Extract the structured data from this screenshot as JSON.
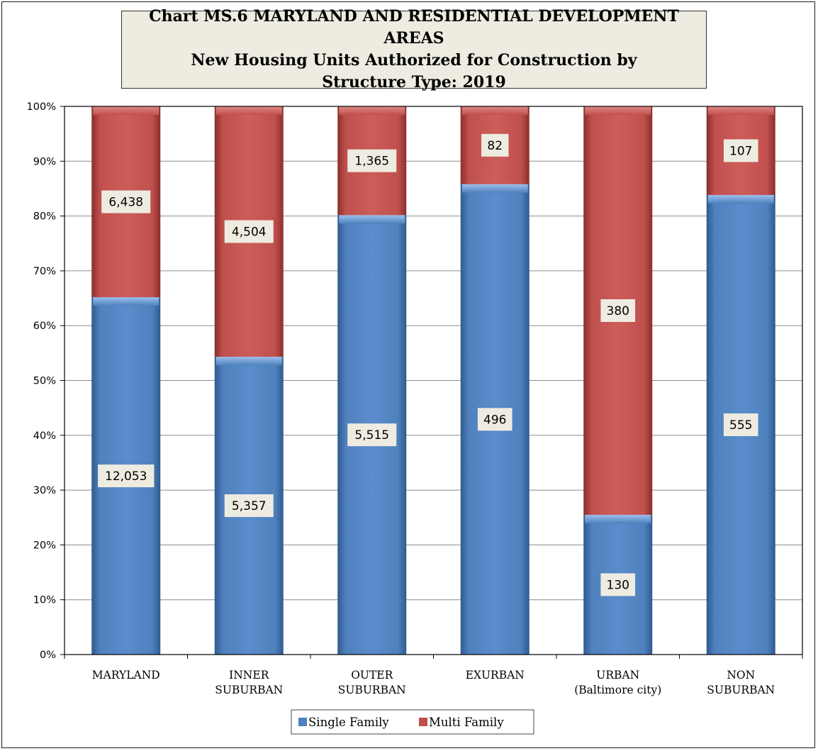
{
  "title": {
    "line1": "Chart MS.6  MARYLAND AND RESIDENTIAL DEVELOPMENT  AREAS",
    "line2": "New Housing Units Authorized for Construction by",
    "line3": "Structure Type:  2019"
  },
  "chart_data": {
    "type": "bar",
    "stacked": "percent",
    "categories": [
      [
        "MARYLAND"
      ],
      [
        "INNER",
        "SUBURBAN"
      ],
      [
        "OUTER",
        "SUBURBAN"
      ],
      [
        "EXURBAN"
      ],
      [
        "URBAN",
        "(Baltimore city)"
      ],
      [
        "NON",
        "SUBURBAN"
      ]
    ],
    "series": [
      {
        "name": "Single Family",
        "values": [
          12053,
          5357,
          5515,
          496,
          130,
          555
        ],
        "labels": [
          "12,053",
          "5,357",
          "5,515",
          "496",
          "130",
          "555"
        ],
        "color": "#4f81bd"
      },
      {
        "name": "Multi Family",
        "values": [
          6438,
          4504,
          1365,
          82,
          380,
          107
        ],
        "labels": [
          "6,438",
          "4,504",
          "1,365",
          "82",
          "380",
          "107"
        ],
        "color": "#c0504d"
      }
    ],
    "ylim": [
      0,
      100
    ],
    "yticks": [
      "0%",
      "10%",
      "20%",
      "30%",
      "40%",
      "50%",
      "60%",
      "70%",
      "80%",
      "90%",
      "100%"
    ],
    "grid": true,
    "legend": "bottom"
  }
}
